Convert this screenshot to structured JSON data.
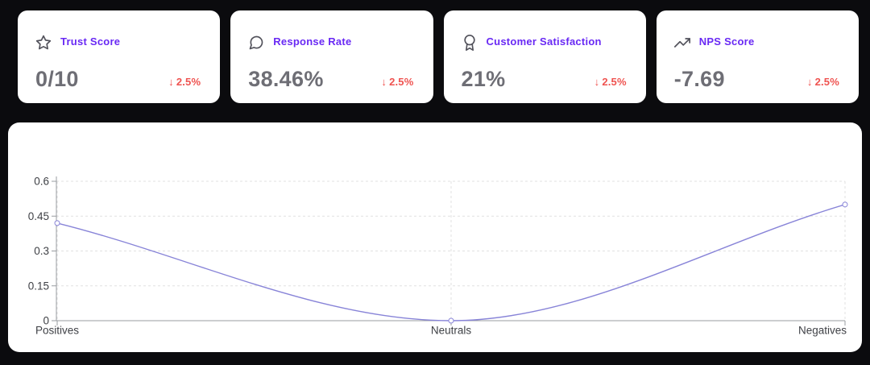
{
  "theme": {
    "page_bg": "#0b0b0e",
    "card_bg": "#ffffff",
    "accent_purple": "#6929f4",
    "delta_red": "#ef5350",
    "value_gray": "#6e6e75",
    "icon_gray": "#52525b"
  },
  "stat_cards": [
    {
      "icon": "star-icon",
      "label": "Trust Score",
      "value": "0/10",
      "delta_arrow": "↓",
      "delta": "2.5%",
      "trend": "down"
    },
    {
      "icon": "message-circle-icon",
      "label": "Response Rate",
      "value": "38.46%",
      "delta_arrow": "↓",
      "delta": "2.5%",
      "trend": "down"
    },
    {
      "icon": "award-icon",
      "label": "Customer Satisfaction",
      "value": "21%",
      "delta_arrow": "↓",
      "delta": "2.5%",
      "trend": "down"
    },
    {
      "icon": "trending-up-icon",
      "label": "NPS Score",
      "value": "-7.69",
      "delta_arrow": "↓",
      "delta": "2.5%",
      "trend": "down"
    }
  ],
  "chart_data": {
    "type": "line",
    "categories": [
      "Positives",
      "Neutrals",
      "Negatives"
    ],
    "values": [
      0.42,
      0,
      0.5
    ],
    "yticks": [
      0,
      0.15,
      0.3,
      0.45,
      0.6
    ],
    "ylim": [
      0,
      0.6
    ],
    "title": "",
    "xlabel": "",
    "ylabel": "",
    "grid": "dashed",
    "legend": "none",
    "curve": "monotone",
    "line_color": "#8884d8",
    "axis_color": "#999ca1",
    "grid_color": "#e1e1e1",
    "tick_label_color": "#3f4146"
  }
}
